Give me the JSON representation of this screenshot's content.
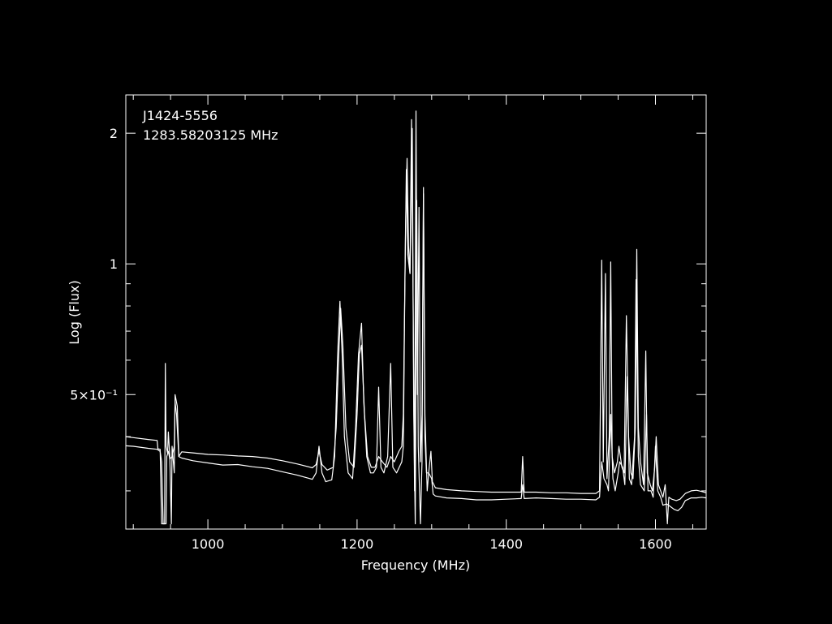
{
  "chart_data": {
    "type": "line",
    "annotations": [
      "J1424-5556",
      "1283.58203125 MHz"
    ],
    "xlabel": "Frequency (MHz)",
    "ylabel": "Log (Flux)",
    "xlim": [
      890,
      1668
    ],
    "ylim": [
      0.245,
      2.45
    ],
    "yscale": "log",
    "grid": false,
    "x_ticks": [
      {
        "value": 1000,
        "label": "1000"
      },
      {
        "value": 1200,
        "label": "1200"
      },
      {
        "value": 1400,
        "label": "1400"
      },
      {
        "value": 1600,
        "label": "1600"
      }
    ],
    "y_ticks": [
      {
        "value": 0.5,
        "label": "5×10⁻¹"
      },
      {
        "value": 1,
        "label": "1"
      },
      {
        "value": 2,
        "label": "2"
      }
    ],
    "line_color": "#ffffff",
    "series": [
      {
        "points": [
          [
            890,
            0.4
          ],
          [
            900,
            0.398
          ],
          [
            920,
            0.394
          ],
          [
            932,
            0.392
          ],
          [
            933,
            0.375
          ],
          [
            936,
            0.374
          ],
          [
            938,
            0.252
          ],
          [
            942,
            0.252
          ],
          [
            943,
            0.59
          ],
          [
            944,
            0.38
          ],
          [
            946,
            0.366
          ],
          [
            947,
            0.41
          ],
          [
            949,
            0.36
          ],
          [
            951,
            0.252
          ],
          [
            952,
            0.38
          ],
          [
            955,
            0.33
          ],
          [
            956,
            0.5
          ],
          [
            959,
            0.47
          ],
          [
            961,
            0.36
          ],
          [
            965,
            0.357
          ],
          [
            980,
            0.352
          ],
          [
            1000,
            0.348
          ],
          [
            1020,
            0.344
          ],
          [
            1040,
            0.345
          ],
          [
            1060,
            0.341
          ],
          [
            1080,
            0.338
          ],
          [
            1100,
            0.332
          ],
          [
            1120,
            0.326
          ],
          [
            1140,
            0.319
          ],
          [
            1145,
            0.33
          ],
          [
            1149,
            0.38
          ],
          [
            1153,
            0.33
          ],
          [
            1158,
            0.315
          ],
          [
            1166,
            0.318
          ],
          [
            1170,
            0.36
          ],
          [
            1174,
            0.62
          ],
          [
            1177,
            0.82
          ],
          [
            1180,
            0.62
          ],
          [
            1183,
            0.4
          ],
          [
            1188,
            0.33
          ],
          [
            1194,
            0.32
          ],
          [
            1198,
            0.42
          ],
          [
            1202,
            0.62
          ],
          [
            1206,
            0.73
          ],
          [
            1209,
            0.48
          ],
          [
            1213,
            0.36
          ],
          [
            1218,
            0.33
          ],
          [
            1222,
            0.33
          ],
          [
            1226,
            0.34
          ],
          [
            1229,
            0.52
          ],
          [
            1232,
            0.34
          ],
          [
            1236,
            0.33
          ],
          [
            1241,
            0.36
          ],
          [
            1245,
            0.59
          ],
          [
            1248,
            0.34
          ],
          [
            1253,
            0.33
          ],
          [
            1260,
            0.35
          ],
          [
            1262,
            0.38
          ],
          [
            1264,
            0.86
          ],
          [
            1266,
            1.65
          ],
          [
            1268,
            1.05
          ],
          [
            1271,
            0.95
          ],
          [
            1273,
            2.15
          ],
          [
            1275,
            0.9
          ],
          [
            1277,
            0.3
          ],
          [
            1279,
            2.25
          ],
          [
            1281,
            0.5
          ],
          [
            1283,
            1.35
          ],
          [
            1285,
            0.35
          ],
          [
            1287,
            0.45
          ],
          [
            1289,
            1.5
          ],
          [
            1291,
            0.45
          ],
          [
            1294,
            0.3
          ],
          [
            1296,
            0.33
          ],
          [
            1300,
            0.32
          ],
          [
            1302,
            0.295
          ],
          [
            1305,
            0.292
          ],
          [
            1320,
            0.289
          ],
          [
            1340,
            0.288
          ],
          [
            1360,
            0.286
          ],
          [
            1380,
            0.286
          ],
          [
            1400,
            0.287
          ],
          [
            1420,
            0.288
          ],
          [
            1422,
            0.31
          ],
          [
            1424,
            0.288
          ],
          [
            1440,
            0.289
          ],
          [
            1460,
            0.288
          ],
          [
            1480,
            0.287
          ],
          [
            1500,
            0.287
          ],
          [
            1520,
            0.286
          ],
          [
            1525,
            0.29
          ],
          [
            1528,
            0.35
          ],
          [
            1531,
            0.32
          ],
          [
            1535,
            0.31
          ],
          [
            1537,
            0.3
          ],
          [
            1540,
            0.45
          ],
          [
            1543,
            0.32
          ],
          [
            1546,
            0.3
          ],
          [
            1550,
            0.33
          ],
          [
            1552,
            0.35
          ],
          [
            1556,
            0.34
          ],
          [
            1559,
            0.31
          ],
          [
            1562,
            0.55
          ],
          [
            1565,
            0.32
          ],
          [
            1568,
            0.31
          ],
          [
            1572,
            0.4
          ],
          [
            1574,
            0.92
          ],
          [
            1577,
            0.36
          ],
          [
            1580,
            0.31
          ],
          [
            1585,
            0.3
          ],
          [
            1588,
            0.45
          ],
          [
            1590,
            0.3
          ],
          [
            1594,
            0.3
          ],
          [
            1597,
            0.29
          ],
          [
            1600,
            0.38
          ],
          [
            1603,
            0.3
          ],
          [
            1607,
            0.29
          ],
          [
            1610,
            0.278
          ],
          [
            1615,
            0.28
          ],
          [
            1620,
            0.276
          ],
          [
            1625,
            0.272
          ],
          [
            1630,
            0.27
          ],
          [
            1635,
            0.275
          ],
          [
            1640,
            0.285
          ],
          [
            1648,
            0.289
          ],
          [
            1655,
            0.289
          ],
          [
            1662,
            0.29
          ],
          [
            1668,
            0.289
          ]
        ]
      },
      {
        "points": [
          [
            890,
            0.381
          ],
          [
            900,
            0.38
          ],
          [
            920,
            0.376
          ],
          [
            932,
            0.374
          ],
          [
            936,
            0.37
          ],
          [
            938,
            0.35
          ],
          [
            940,
            0.252
          ],
          [
            944,
            0.252
          ],
          [
            945,
            0.36
          ],
          [
            947,
            0.37
          ],
          [
            949,
            0.355
          ],
          [
            952,
            0.36
          ],
          [
            955,
            0.38
          ],
          [
            956,
            0.48
          ],
          [
            958,
            0.45
          ],
          [
            961,
            0.36
          ],
          [
            965,
            0.369
          ],
          [
            980,
            0.367
          ],
          [
            1000,
            0.364
          ],
          [
            1020,
            0.363
          ],
          [
            1040,
            0.361
          ],
          [
            1060,
            0.36
          ],
          [
            1080,
            0.357
          ],
          [
            1100,
            0.352
          ],
          [
            1120,
            0.346
          ],
          [
            1140,
            0.339
          ],
          [
            1145,
            0.345
          ],
          [
            1149,
            0.37
          ],
          [
            1153,
            0.345
          ],
          [
            1160,
            0.335
          ],
          [
            1168,
            0.34
          ],
          [
            1172,
            0.42
          ],
          [
            1176,
            0.65
          ],
          [
            1178,
            0.79
          ],
          [
            1181,
            0.65
          ],
          [
            1185,
            0.42
          ],
          [
            1190,
            0.35
          ],
          [
            1196,
            0.34
          ],
          [
            1200,
            0.45
          ],
          [
            1203,
            0.62
          ],
          [
            1206,
            0.65
          ],
          [
            1210,
            0.45
          ],
          [
            1214,
            0.36
          ],
          [
            1219,
            0.34
          ],
          [
            1224,
            0.34
          ],
          [
            1229,
            0.36
          ],
          [
            1234,
            0.35
          ],
          [
            1240,
            0.34
          ],
          [
            1245,
            0.36
          ],
          [
            1250,
            0.35
          ],
          [
            1256,
            0.37
          ],
          [
            1260,
            0.38
          ],
          [
            1262,
            0.45
          ],
          [
            1265,
            1.2
          ],
          [
            1267,
            1.75
          ],
          [
            1269,
            1.1
          ],
          [
            1271,
            0.95
          ],
          [
            1274,
            2.05
          ],
          [
            1276,
            0.45
          ],
          [
            1278,
            0.252
          ],
          [
            1280,
            1.4
          ],
          [
            1282,
            0.38
          ],
          [
            1285,
            0.252
          ],
          [
            1287,
            0.35
          ],
          [
            1289,
            1.45
          ],
          [
            1291,
            0.4
          ],
          [
            1293,
            0.33
          ],
          [
            1296,
            0.33
          ],
          [
            1299,
            0.37
          ],
          [
            1301,
            0.315
          ],
          [
            1305,
            0.305
          ],
          [
            1320,
            0.302
          ],
          [
            1340,
            0.3
          ],
          [
            1360,
            0.299
          ],
          [
            1380,
            0.298
          ],
          [
            1400,
            0.298
          ],
          [
            1420,
            0.298
          ],
          [
            1422,
            0.36
          ],
          [
            1424,
            0.298
          ],
          [
            1440,
            0.298
          ],
          [
            1460,
            0.297
          ],
          [
            1480,
            0.297
          ],
          [
            1500,
            0.296
          ],
          [
            1520,
            0.296
          ],
          [
            1525,
            0.3
          ],
          [
            1528,
            1.02
          ],
          [
            1530,
            0.35
          ],
          [
            1533,
            0.95
          ],
          [
            1535,
            0.32
          ],
          [
            1538,
            0.4
          ],
          [
            1540,
            1.01
          ],
          [
            1542,
            0.36
          ],
          [
            1545,
            0.33
          ],
          [
            1549,
            0.35
          ],
          [
            1551,
            0.38
          ],
          [
            1555,
            0.34
          ],
          [
            1558,
            0.33
          ],
          [
            1561,
            0.76
          ],
          [
            1564,
            0.4
          ],
          [
            1567,
            0.33
          ],
          [
            1570,
            0.32
          ],
          [
            1573,
            0.42
          ],
          [
            1575,
            1.08
          ],
          [
            1577,
            0.42
          ],
          [
            1580,
            0.35
          ],
          [
            1584,
            0.31
          ],
          [
            1587,
            0.63
          ],
          [
            1589,
            0.33
          ],
          [
            1593,
            0.31
          ],
          [
            1596,
            0.3
          ],
          [
            1599,
            0.34
          ],
          [
            1601,
            0.4
          ],
          [
            1604,
            0.31
          ],
          [
            1607,
            0.3
          ],
          [
            1610,
            0.29
          ],
          [
            1613,
            0.31
          ],
          [
            1616,
            0.252
          ],
          [
            1618,
            0.29
          ],
          [
            1622,
            0.287
          ],
          [
            1628,
            0.285
          ],
          [
            1633,
            0.287
          ],
          [
            1640,
            0.296
          ],
          [
            1648,
            0.3
          ],
          [
            1655,
            0.301
          ],
          [
            1662,
            0.299
          ],
          [
            1668,
            0.297
          ]
        ]
      }
    ]
  }
}
